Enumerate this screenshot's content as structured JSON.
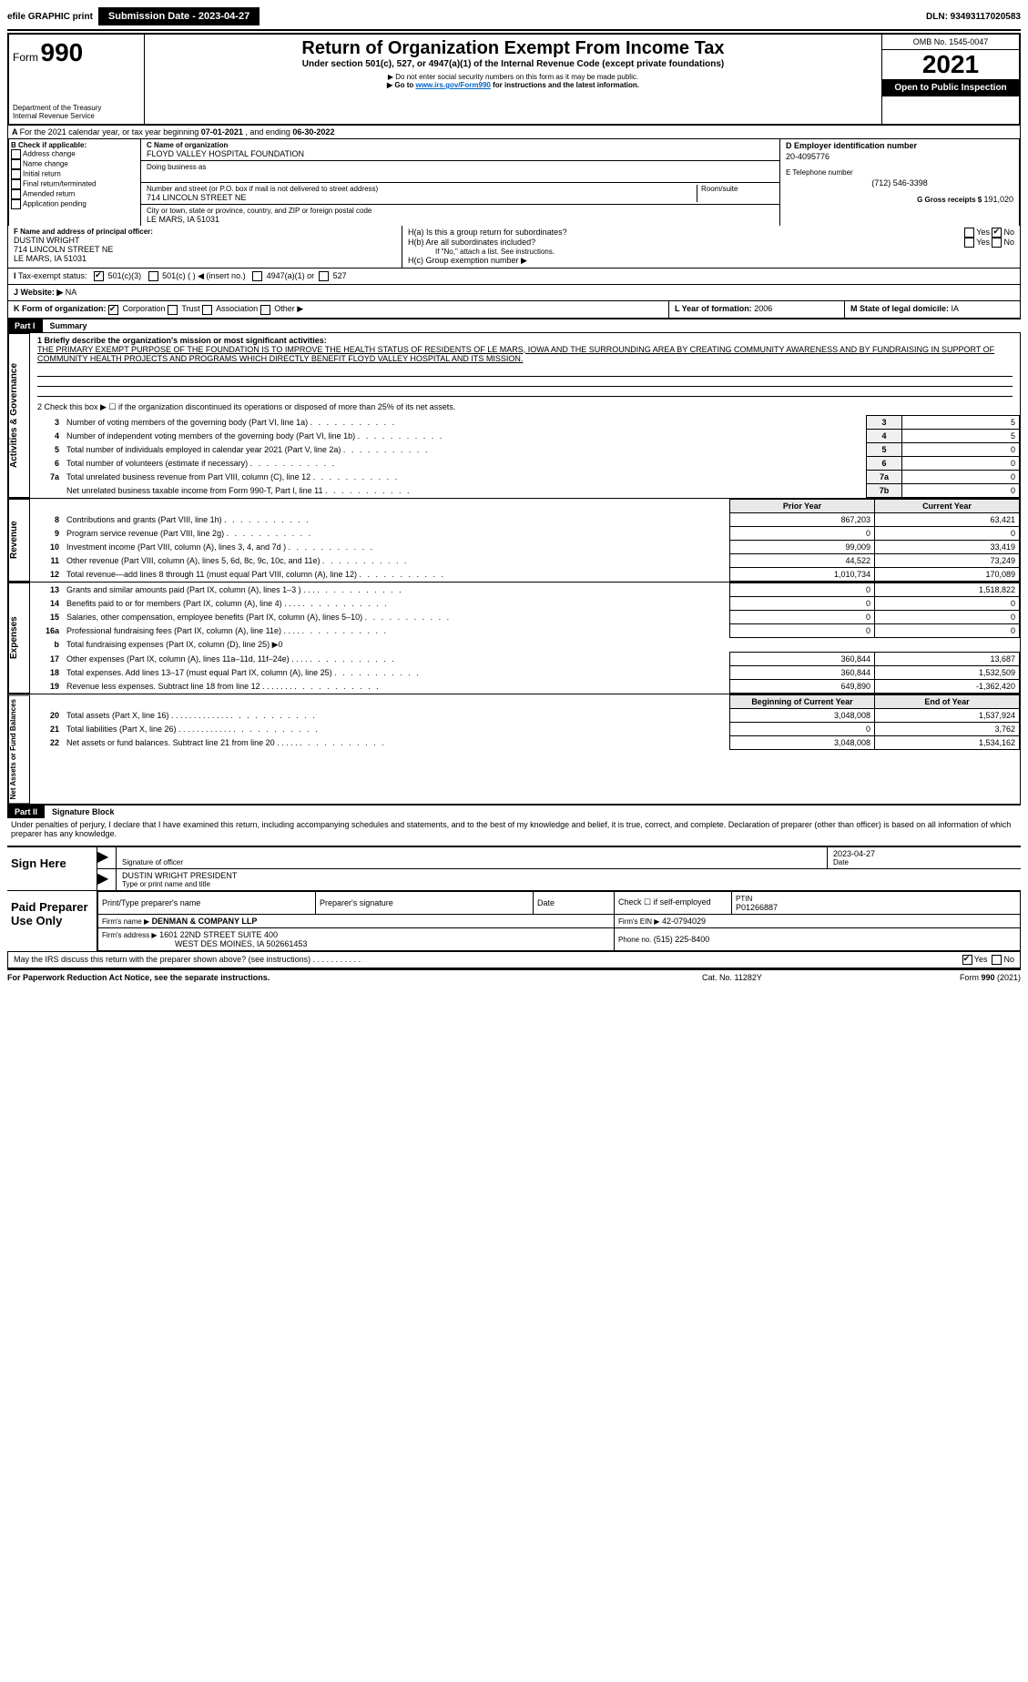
{
  "topbar": {
    "efile": "efile GRAPHIC print",
    "submission": "Submission Date - 2023-04-27",
    "dln": "DLN: 93493117020583"
  },
  "header": {
    "form_prefix": "Form",
    "form_no": "990",
    "dept1": "Department of the Treasury",
    "dept2": "Internal Revenue Service",
    "title": "Return of Organization Exempt From Income Tax",
    "subtitle": "Under section 501(c), 527, or 4947(a)(1) of the Internal Revenue Code (except private foundations)",
    "note1": "▶ Do not enter social security numbers on this form as it may be made public.",
    "note2_pre": "▶ Go to ",
    "note2_link": "www.irs.gov/Form990",
    "note2_post": " for instructions and the latest information.",
    "omb": "OMB No. 1545-0047",
    "year": "2021",
    "open": "Open to Public Inspection"
  },
  "period": {
    "label_a": "For the 2021 calendar year, or tax year beginning ",
    "begin": "07-01-2021",
    "mid": " , and ending ",
    "end": "06-30-2022"
  },
  "box_b": {
    "label": "B Check if applicable:",
    "items": [
      "Address change",
      "Name change",
      "Initial return",
      "Final return/terminated",
      "Amended return",
      "Application pending"
    ]
  },
  "box_c": {
    "label": "C Name of organization",
    "name": "FLOYD VALLEY HOSPITAL FOUNDATION",
    "dba_label": "Doing business as",
    "street_label": "Number and street (or P.O. box if mail is not delivered to street address)",
    "room_label": "Room/suite",
    "street": "714 LINCOLN STREET NE",
    "city_label": "City or town, state or province, country, and ZIP or foreign postal code",
    "city": "LE MARS, IA  51031"
  },
  "box_d": {
    "label": "D Employer identification number",
    "ein": "20-4095776"
  },
  "box_e": {
    "label": "E Telephone number",
    "phone": "(712) 546-3398"
  },
  "box_g": {
    "label": "G Gross receipts $ ",
    "val": "191,020"
  },
  "box_f": {
    "label": "F Name and address of principal officer:",
    "name": "DUSTIN WRIGHT",
    "street": "714 LINCOLN STREET NE",
    "city": "LE MARS, IA  51031"
  },
  "box_h": {
    "a_label": "H(a)  Is this a group return for subordinates?",
    "b_label": "H(b)  Are all subordinates included?",
    "b_note": "If \"No,\" attach a list. See instructions.",
    "c_label": "H(c)  Group exemption number ▶",
    "yes": "Yes",
    "no": "No"
  },
  "box_i": {
    "label": "Tax-exempt status:",
    "opt1": "501(c)(3)",
    "opt2": "501(c) (  ) ◀ (insert no.)",
    "opt3": "4947(a)(1) or",
    "opt4": "527"
  },
  "box_j": {
    "label": "Website: ▶",
    "val": " NA"
  },
  "box_k": {
    "label": "K Form of organization:",
    "opts": [
      "Corporation",
      "Trust",
      "Association",
      "Other ▶"
    ]
  },
  "box_l": {
    "label": "L Year of formation: ",
    "val": "2006"
  },
  "box_m": {
    "label": "M State of legal domicile: ",
    "val": "IA"
  },
  "part1": {
    "header": "Part I",
    "title": "Summary",
    "line1_label": "1 Briefly describe the organization's mission or most significant activities:",
    "line1_text": "THE PRIMARY EXEMPT PURPOSE OF THE FOUNDATION IS TO IMPROVE THE HEALTH STATUS OF RESIDENTS OF LE MARS, IOWA AND THE SURROUNDING AREA BY CREATING COMMUNITY AWARENESS AND BY FUNDRAISING IN SUPPORT OF COMMUNITY HEALTH PROJECTS AND PROGRAMS WHICH DIRECTLY BENEFIT FLOYD VALLEY HOSPITAL AND ITS MISSION.",
    "line2": "2  Check this box ▶ ☐ if the organization discontinued its operations or disposed of more than 25% of its net assets.",
    "sidebar1": "Activities & Governance",
    "sidebar2": "Revenue",
    "sidebar3": "Expenses",
    "sidebar4": "Net Assets or Fund Balances",
    "gov_rows": [
      {
        "n": "3",
        "label": "Number of voting members of the governing body (Part VI, line 1a)",
        "box": "3",
        "val": "5"
      },
      {
        "n": "4",
        "label": "Number of independent voting members of the governing body (Part VI, line 1b)",
        "box": "4",
        "val": "5"
      },
      {
        "n": "5",
        "label": "Total number of individuals employed in calendar year 2021 (Part V, line 2a)",
        "box": "5",
        "val": "0"
      },
      {
        "n": "6",
        "label": "Total number of volunteers (estimate if necessary)",
        "box": "6",
        "val": "0"
      },
      {
        "n": "7a",
        "label": "Total unrelated business revenue from Part VIII, column (C), line 12",
        "box": "7a",
        "val": "0"
      },
      {
        "n": "",
        "label": "Net unrelated business taxable income from Form 990-T, Part I, line 11",
        "box": "7b",
        "val": "0"
      }
    ],
    "col_prior": "Prior Year",
    "col_current": "Current Year",
    "rev_rows": [
      {
        "n": "8",
        "label": "Contributions and grants (Part VIII, line 1h)",
        "p": "867,203",
        "c": "63,421"
      },
      {
        "n": "9",
        "label": "Program service revenue (Part VIII, line 2g)",
        "p": "0",
        "c": "0"
      },
      {
        "n": "10",
        "label": "Investment income (Part VIII, column (A), lines 3, 4, and 7d )",
        "p": "99,009",
        "c": "33,419"
      },
      {
        "n": "11",
        "label": "Other revenue (Part VIII, column (A), lines 5, 6d, 8c, 9c, 10c, and 11e)",
        "p": "44,522",
        "c": "73,249"
      },
      {
        "n": "12",
        "label": "Total revenue—add lines 8 through 11 (must equal Part VIII, column (A), line 12)",
        "p": "1,010,734",
        "c": "170,089"
      }
    ],
    "exp_rows": [
      {
        "n": "13",
        "label": "Grants and similar amounts paid (Part IX, column (A), lines 1–3 )   .   .   .",
        "p": "0",
        "c": "1,518,822"
      },
      {
        "n": "14",
        "label": "Benefits paid to or for members (Part IX, column (A), line 4)  .   .   .   .",
        "p": "0",
        "c": "0"
      },
      {
        "n": "15",
        "label": "Salaries, other compensation, employee benefits (Part IX, column (A), lines 5–10)",
        "p": "0",
        "c": "0"
      },
      {
        "n": "16a",
        "label": "Professional fundraising fees (Part IX, column (A), line 11e)   .   .   .   .",
        "p": "0",
        "c": "0"
      },
      {
        "n": "b",
        "label": "Total fundraising expenses (Part IX, column (D), line 25) ▶0",
        "p": "",
        "c": ""
      },
      {
        "n": "17",
        "label": "Other expenses (Part IX, column (A), lines 11a–11d, 11f–24e)   .   .   .   .",
        "p": "360,844",
        "c": "13,687"
      },
      {
        "n": "18",
        "label": "Total expenses. Add lines 13–17 (must equal Part IX, column (A), line 25)",
        "p": "360,844",
        "c": "1,532,509"
      },
      {
        "n": "19",
        "label": "Revenue less expenses. Subtract line 18 from line 12  .   .   .   .   .   .   .",
        "p": "649,890",
        "c": "-1,362,420"
      }
    ],
    "col_begin": "Beginning of Current Year",
    "col_end": "End of Year",
    "net_rows": [
      {
        "n": "20",
        "label": "Total assets (Part X, line 16)  .   .   .   .   .   .   .   .   .   .   .   .   .",
        "p": "3,048,008",
        "c": "1,537,924"
      },
      {
        "n": "21",
        "label": "Total liabilities (Part X, line 26)  .   .   .   .   .   .   .   .   .   .   .   .",
        "p": "0",
        "c": "3,762"
      },
      {
        "n": "22",
        "label": "Net assets or fund balances. Subtract line 21 from line 20  .   .   .   .   .",
        "p": "3,048,008",
        "c": "1,534,162"
      }
    ]
  },
  "part2": {
    "header": "Part II",
    "title": "Signature Block",
    "penalty": "Under penalties of perjury, I declare that I have examined this return, including accompanying schedules and statements, and to the best of my knowledge and belief, it is true, correct, and complete. Declaration of preparer (other than officer) is based on all information of which preparer has any knowledge.",
    "sign_here": "Sign Here",
    "sig_officer": "Signature of officer",
    "sig_date": "2023-04-27",
    "date_label": "Date",
    "officer_name": "DUSTIN WRIGHT PRESIDENT",
    "type_name": "Type or print name and title",
    "paid": "Paid Preparer Use Only",
    "prep_name_label": "Print/Type preparer's name",
    "prep_sig_label": "Preparer's signature",
    "prep_date_label": "Date",
    "check_if": "Check ☐ if self-employed",
    "ptin_label": "PTIN",
    "ptin": "P01266887",
    "firm_name_label": "Firm's name    ▶",
    "firm_name": "DENMAN & COMPANY LLP",
    "firm_ein_label": "Firm's EIN ▶",
    "firm_ein": "42-0794029",
    "firm_addr_label": "Firm's address ▶",
    "firm_addr1": "1601 22ND STREET SUITE 400",
    "firm_addr2": "WEST DES MOINES, IA  502661453",
    "firm_phone_label": "Phone no. ",
    "firm_phone": "(515) 225-8400",
    "discuss": "May the IRS discuss this return with the preparer shown above? (see instructions)   .   .   .   .   .   .   .   .   .   .   .",
    "yes": "Yes",
    "no": "No"
  },
  "footer": {
    "left": "For Paperwork Reduction Act Notice, see the separate instructions.",
    "mid": "Cat. No. 11282Y",
    "right": "Form 990 (2021)"
  }
}
